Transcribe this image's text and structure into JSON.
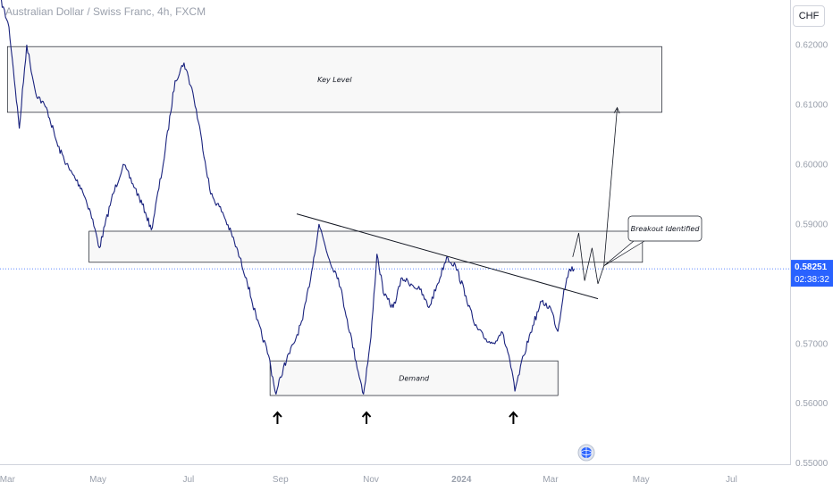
{
  "header": {
    "symbol_title": "Australian Dollar / Swiss Franc, 4h, FXCM",
    "currency_button": "CHF"
  },
  "colors": {
    "candle": "#1a237e",
    "accent": "#2962ff",
    "zone_border": "#131722",
    "zone_fill": "#f8f8f8",
    "axis_text": "#9aa0ac"
  },
  "icons": {
    "exchange_logo": "globe-icon",
    "marker": "up-arrow-icon"
  },
  "chart_data": {
    "type": "line",
    "title": "Australian Dollar / Swiss Franc, 4h, FXCM",
    "xlabel": "",
    "ylabel": "",
    "x_ticks": [
      "Mar",
      "May",
      "Jul",
      "Sep",
      "Nov",
      "2024",
      "Mar",
      "May",
      "Jul"
    ],
    "y_ticks": [
      "0.62000",
      "0.61000",
      "0.60000",
      "0.59000",
      "0.57000",
      "0.56000",
      "0.55000"
    ],
    "ylim": [
      0.5498,
      0.6275
    ],
    "grid": false,
    "series": [
      {
        "values": [
          [
            "2023-02-24",
            0.628
          ],
          [
            "2023-03-02",
            0.623
          ],
          [
            "2023-03-05",
            0.616
          ],
          [
            "2023-03-09",
            0.606
          ],
          [
            "2023-03-14",
            0.62
          ],
          [
            "2023-03-20",
            0.612
          ],
          [
            "2023-03-28",
            0.609
          ],
          [
            "2023-04-04",
            0.603
          ],
          [
            "2023-04-12",
            0.599
          ],
          [
            "2023-04-20",
            0.596
          ],
          [
            "2023-04-26",
            0.592
          ],
          [
            "2023-05-02",
            0.586
          ],
          [
            "2023-05-10",
            0.594
          ],
          [
            "2023-05-18",
            0.6
          ],
          [
            "2023-05-26",
            0.596
          ],
          [
            "2023-06-02",
            0.592
          ],
          [
            "2023-06-06",
            0.589
          ],
          [
            "2023-06-14",
            0.6
          ],
          [
            "2023-06-22",
            0.614
          ],
          [
            "2023-06-28",
            0.617
          ],
          [
            "2023-07-04",
            0.612
          ],
          [
            "2023-07-10",
            0.604
          ],
          [
            "2023-07-16",
            0.595
          ],
          [
            "2023-07-24",
            0.592
          ],
          [
            "2023-08-01",
            0.587
          ],
          [
            "2023-08-09",
            0.581
          ],
          [
            "2023-08-16",
            0.574
          ],
          [
            "2023-08-24",
            0.568
          ],
          [
            "2023-08-29",
            0.5615
          ],
          [
            "2023-09-03",
            0.566
          ],
          [
            "2023-09-10",
            0.57
          ],
          [
            "2023-09-16",
            0.574
          ],
          [
            "2023-09-22",
            0.582
          ],
          [
            "2023-09-27",
            0.59
          ],
          [
            "2023-10-04",
            0.584
          ],
          [
            "2023-10-10",
            0.581
          ],
          [
            "2023-10-16",
            0.574
          ],
          [
            "2023-10-22",
            0.567
          ],
          [
            "2023-10-27",
            0.5615
          ],
          [
            "2023-11-01",
            0.571
          ],
          [
            "2023-11-05",
            0.585
          ],
          [
            "2023-11-10",
            0.578
          ],
          [
            "2023-11-16",
            0.576
          ],
          [
            "2023-11-22",
            0.581
          ],
          [
            "2023-11-28",
            0.58
          ],
          [
            "2023-12-04",
            0.579
          ],
          [
            "2023-12-10",
            0.576
          ],
          [
            "2023-12-16",
            0.58
          ],
          [
            "2023-12-22",
            0.5845
          ],
          [
            "2023-12-28",
            0.583
          ],
          [
            "2024-01-04",
            0.578
          ],
          [
            "2024-01-10",
            0.573
          ],
          [
            "2024-01-16",
            0.571
          ],
          [
            "2024-01-22",
            0.57
          ],
          [
            "2024-01-28",
            0.572
          ],
          [
            "2024-02-02",
            0.568
          ],
          [
            "2024-02-06",
            0.562
          ],
          [
            "2024-02-12",
            0.568
          ],
          [
            "2024-02-18",
            0.573
          ],
          [
            "2024-02-24",
            0.577
          ],
          [
            "2024-03-01",
            0.576
          ],
          [
            "2024-03-06",
            0.572
          ],
          [
            "2024-03-10",
            0.579
          ],
          [
            "2024-03-14",
            0.5825
          ],
          [
            "2024-03-17",
            0.5825
          ]
        ]
      }
    ],
    "zones": [
      {
        "label": "Key Level",
        "from": "2023-03-01",
        "to": "2024-05-15",
        "low": 0.6087,
        "high": 0.6197
      },
      {
        "label": "",
        "from": "2023-04-25",
        "to": "2024-05-02",
        "low": 0.5836,
        "high": 0.5888
      },
      {
        "label": "Demand",
        "from": "2023-08-25",
        "to": "2024-03-06",
        "low": 0.5613,
        "high": 0.5671
      }
    ],
    "trendline": {
      "from": [
        "2023-09-12",
        0.5917
      ],
      "to": [
        "2024-04-02",
        0.5775
      ]
    },
    "projection_path": [
      [
        "2024-03-16",
        0.5845
      ],
      [
        "2024-03-20",
        0.5885
      ],
      [
        "2024-03-24",
        0.5805
      ],
      [
        "2024-03-29",
        0.586
      ],
      [
        "2024-04-02",
        0.58
      ],
      [
        "2024-04-06",
        0.583
      ],
      [
        "2024-04-15",
        0.6095
      ]
    ],
    "markers": [
      {
        "date": "2023-08-30",
        "type": "up-arrow"
      },
      {
        "date": "2023-10-29",
        "type": "up-arrow"
      },
      {
        "date": "2024-02-05",
        "type": "up-arrow"
      }
    ],
    "annotations": [
      {
        "text": "Breakout Identified",
        "anchor": [
          "2024-04-06",
          0.583
        ]
      }
    ],
    "current_price": {
      "value": "0.58251",
      "countdown": "02:38:32"
    }
  }
}
